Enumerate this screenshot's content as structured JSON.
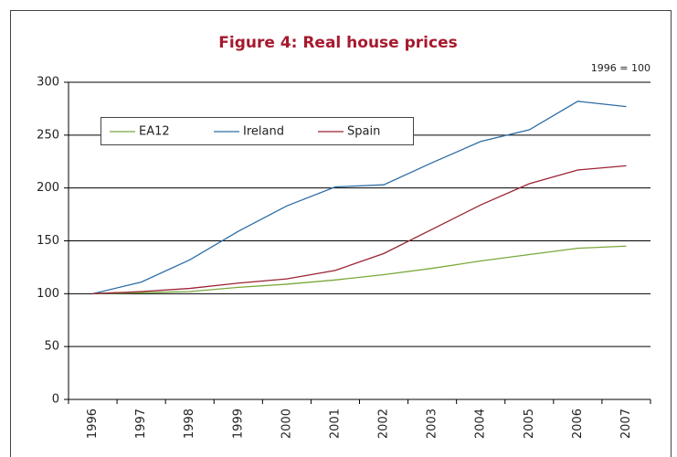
{
  "chart_data": {
    "type": "line",
    "title": "Figure 4: Real house prices",
    "annotation": "1996 = 100",
    "categories": [
      "1996",
      "1997",
      "1998",
      "1999",
      "2000",
      "2001",
      "2002",
      "2003",
      "2004",
      "2005",
      "2006",
      "2007"
    ],
    "series": [
      {
        "name": "EA12",
        "color": "#7aa83c",
        "values": [
          100,
          101,
          102,
          106,
          109,
          113,
          118,
          124,
          131,
          137,
          143,
          145
        ]
      },
      {
        "name": "Ireland",
        "color": "#2e6ca4",
        "values": [
          100,
          111,
          132,
          159,
          183,
          201,
          203,
          224,
          244,
          255,
          282,
          277
        ]
      },
      {
        "name": "Spain",
        "color": "#9b2335",
        "values": [
          100,
          102,
          105,
          110,
          114,
          122,
          138,
          161,
          184,
          204,
          217,
          221
        ]
      }
    ],
    "ylim": [
      0,
      300
    ],
    "yticks": [
      0,
      50,
      100,
      150,
      200,
      250,
      300
    ],
    "grid": true,
    "legend": "upper left"
  }
}
